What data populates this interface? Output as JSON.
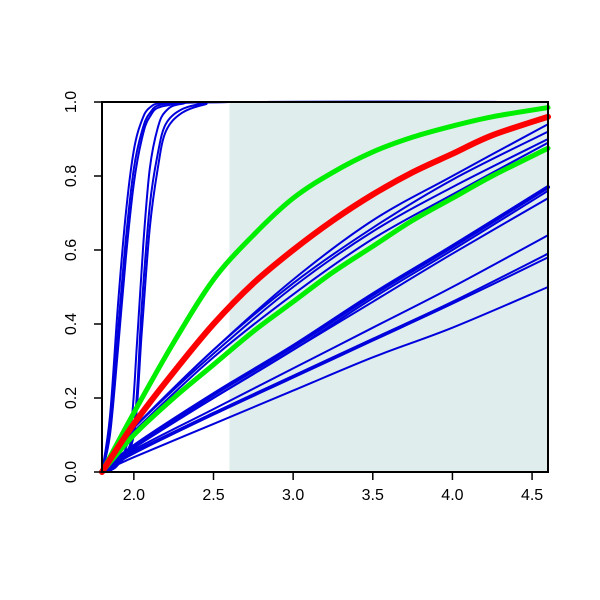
{
  "chart_data": {
    "type": "line",
    "title": "",
    "xlabel": "",
    "ylabel": "",
    "xlim": [
      1.8,
      4.6
    ],
    "ylim": [
      0,
      1
    ],
    "x_ticks": [
      "2.0",
      "2.5",
      "3.0",
      "3.5",
      "4.0",
      "4.5"
    ],
    "y_ticks": [
      "0.0",
      "0.2",
      "0.4",
      "0.6",
      "0.8",
      "1.0"
    ],
    "shaded_region": {
      "x_from": 2.6,
      "x_to": 4.6,
      "color": "#e0eded"
    },
    "colors": {
      "blue": "#0000dd",
      "red": "#ff0000",
      "green": "#00ee00",
      "axis": "#000000"
    },
    "series": [
      {
        "color": "blue",
        "width": 2,
        "values": [
          [
            1.8,
            0.0
          ],
          [
            1.85,
            0.15
          ],
          [
            1.9,
            0.45
          ],
          [
            1.95,
            0.7
          ],
          [
            2.0,
            0.87
          ],
          [
            2.05,
            0.95
          ],
          [
            2.1,
            0.985
          ],
          [
            2.2,
            0.998
          ],
          [
            2.6,
            1.0
          ],
          [
            4.6,
            1.0
          ]
        ]
      },
      {
        "color": "blue",
        "width": 2,
        "values": [
          [
            1.8,
            0.0
          ],
          [
            1.85,
            0.12
          ],
          [
            1.9,
            0.38
          ],
          [
            1.95,
            0.63
          ],
          [
            2.0,
            0.82
          ],
          [
            2.05,
            0.92
          ],
          [
            2.1,
            0.97
          ],
          [
            2.2,
            0.995
          ],
          [
            2.6,
            1.0
          ],
          [
            4.6,
            1.0
          ]
        ]
      },
      {
        "color": "blue",
        "width": 2,
        "values": [
          [
            1.8,
            0.0
          ],
          [
            1.85,
            0.1
          ],
          [
            1.9,
            0.33
          ],
          [
            1.95,
            0.58
          ],
          [
            2.0,
            0.78
          ],
          [
            2.05,
            0.9
          ],
          [
            2.1,
            0.96
          ],
          [
            2.2,
            0.99
          ],
          [
            2.6,
            1.0
          ],
          [
            4.6,
            1.0
          ]
        ]
      },
      {
        "color": "blue",
        "width": 2,
        "values": [
          [
            1.8,
            0.0
          ],
          [
            1.9,
            0.02
          ],
          [
            1.98,
            0.12
          ],
          [
            2.02,
            0.35
          ],
          [
            2.06,
            0.62
          ],
          [
            2.1,
            0.82
          ],
          [
            2.15,
            0.93
          ],
          [
            2.2,
            0.975
          ],
          [
            2.3,
            0.995
          ],
          [
            2.6,
            1.0
          ],
          [
            4.6,
            1.0
          ]
        ]
      },
      {
        "color": "blue",
        "width": 2,
        "values": [
          [
            1.8,
            0.0
          ],
          [
            1.9,
            0.02
          ],
          [
            2.0,
            0.12
          ],
          [
            2.05,
            0.45
          ],
          [
            2.1,
            0.72
          ],
          [
            2.15,
            0.86
          ],
          [
            2.2,
            0.94
          ],
          [
            2.3,
            0.98
          ],
          [
            2.45,
            0.997
          ],
          [
            2.6,
            1.0
          ],
          [
            4.6,
            1.0
          ]
        ]
      },
      {
        "color": "blue",
        "width": 2,
        "values": [
          [
            1.8,
            0.0
          ],
          [
            1.9,
            0.02
          ],
          [
            2.0,
            0.1
          ],
          [
            2.05,
            0.38
          ],
          [
            2.1,
            0.66
          ],
          [
            2.15,
            0.82
          ],
          [
            2.2,
            0.92
          ],
          [
            2.3,
            0.97
          ],
          [
            2.45,
            0.994
          ],
          [
            2.6,
            1.0
          ],
          [
            4.6,
            1.0
          ]
        ]
      },
      {
        "color": "blue",
        "width": 2,
        "values": [
          [
            1.8,
            0.0
          ],
          [
            1.9,
            0.07
          ],
          [
            2.0,
            0.12
          ],
          [
            2.5,
            0.33
          ],
          [
            3.0,
            0.52
          ],
          [
            3.5,
            0.68
          ],
          [
            4.0,
            0.8
          ],
          [
            4.6,
            0.94
          ]
        ]
      },
      {
        "color": "blue",
        "width": 2,
        "values": [
          [
            1.8,
            0.0
          ],
          [
            1.9,
            0.07
          ],
          [
            2.0,
            0.12
          ],
          [
            2.5,
            0.33
          ],
          [
            3.0,
            0.51
          ],
          [
            3.5,
            0.66
          ],
          [
            4.0,
            0.79
          ],
          [
            4.6,
            0.92
          ]
        ]
      },
      {
        "color": "blue",
        "width": 2,
        "values": [
          [
            1.8,
            0.0
          ],
          [
            1.9,
            0.07
          ],
          [
            2.0,
            0.12
          ],
          [
            2.5,
            0.32
          ],
          [
            3.0,
            0.5
          ],
          [
            3.5,
            0.65
          ],
          [
            4.0,
            0.77
          ],
          [
            4.6,
            0.9
          ]
        ]
      },
      {
        "color": "blue",
        "width": 2,
        "values": [
          [
            1.8,
            0.0
          ],
          [
            1.9,
            0.06
          ],
          [
            2.0,
            0.11
          ],
          [
            2.5,
            0.31
          ],
          [
            3.0,
            0.48
          ],
          [
            3.5,
            0.63
          ],
          [
            4.0,
            0.75
          ],
          [
            4.6,
            0.89
          ]
        ]
      },
      {
        "color": "blue",
        "width": 4,
        "values": [
          [
            1.8,
            0.0
          ],
          [
            2.0,
            0.07
          ],
          [
            2.5,
            0.21
          ],
          [
            3.0,
            0.34
          ],
          [
            3.5,
            0.48
          ],
          [
            4.0,
            0.61
          ],
          [
            4.6,
            0.77
          ]
        ]
      },
      {
        "color": "blue",
        "width": 2,
        "values": [
          [
            1.8,
            0.0
          ],
          [
            2.0,
            0.07
          ],
          [
            2.5,
            0.2
          ],
          [
            3.0,
            0.33
          ],
          [
            3.5,
            0.47
          ],
          [
            4.0,
            0.6
          ],
          [
            4.6,
            0.76
          ]
        ]
      },
      {
        "color": "blue",
        "width": 2,
        "values": [
          [
            1.8,
            0.0
          ],
          [
            2.0,
            0.065
          ],
          [
            2.5,
            0.2
          ],
          [
            3.0,
            0.33
          ],
          [
            3.5,
            0.46
          ],
          [
            4.0,
            0.59
          ],
          [
            4.6,
            0.74
          ]
        ]
      },
      {
        "color": "blue",
        "width": 2,
        "values": [
          [
            1.8,
            0.0
          ],
          [
            2.0,
            0.06
          ],
          [
            2.5,
            0.17
          ],
          [
            3.0,
            0.28
          ],
          [
            3.5,
            0.39
          ],
          [
            4.0,
            0.5
          ],
          [
            4.6,
            0.64
          ]
        ]
      },
      {
        "color": "blue",
        "width": 2,
        "values": [
          [
            1.8,
            0.0
          ],
          [
            2.0,
            0.055
          ],
          [
            2.5,
            0.16
          ],
          [
            3.0,
            0.26
          ],
          [
            3.5,
            0.36
          ],
          [
            4.0,
            0.46
          ],
          [
            4.6,
            0.59
          ]
        ]
      },
      {
        "color": "blue",
        "width": 2,
        "values": [
          [
            1.8,
            0.0
          ],
          [
            2.0,
            0.05
          ],
          [
            2.5,
            0.155
          ],
          [
            3.0,
            0.255
          ],
          [
            3.5,
            0.355
          ],
          [
            4.0,
            0.455
          ],
          [
            4.6,
            0.58
          ]
        ]
      },
      {
        "color": "blue",
        "width": 2,
        "values": [
          [
            1.8,
            0.0
          ],
          [
            2.0,
            0.04
          ],
          [
            2.5,
            0.13
          ],
          [
            3.0,
            0.22
          ],
          [
            3.5,
            0.31
          ],
          [
            4.0,
            0.39
          ],
          [
            4.6,
            0.5
          ]
        ]
      },
      {
        "color": "green",
        "width": 5,
        "values": [
          [
            1.8,
            0.0
          ],
          [
            2.0,
            0.16
          ],
          [
            2.25,
            0.35
          ],
          [
            2.5,
            0.52
          ],
          [
            2.75,
            0.64
          ],
          [
            3.0,
            0.74
          ],
          [
            3.25,
            0.81
          ],
          [
            3.5,
            0.865
          ],
          [
            3.75,
            0.905
          ],
          [
            4.0,
            0.935
          ],
          [
            4.25,
            0.96
          ],
          [
            4.6,
            0.985
          ]
        ]
      },
      {
        "color": "green",
        "width": 5,
        "values": [
          [
            1.8,
            0.0
          ],
          [
            2.0,
            0.1
          ],
          [
            2.25,
            0.2
          ],
          [
            2.5,
            0.29
          ],
          [
            2.75,
            0.38
          ],
          [
            3.0,
            0.46
          ],
          [
            3.25,
            0.54
          ],
          [
            3.5,
            0.61
          ],
          [
            3.75,
            0.68
          ],
          [
            4.0,
            0.74
          ],
          [
            4.25,
            0.8
          ],
          [
            4.6,
            0.875
          ]
        ]
      },
      {
        "color": "red",
        "width": 6,
        "values": [
          [
            1.8,
            0.0
          ],
          [
            2.0,
            0.13
          ],
          [
            2.25,
            0.27
          ],
          [
            2.5,
            0.4
          ],
          [
            2.75,
            0.51
          ],
          [
            3.0,
            0.6
          ],
          [
            3.25,
            0.68
          ],
          [
            3.5,
            0.75
          ],
          [
            3.75,
            0.81
          ],
          [
            4.0,
            0.86
          ],
          [
            4.25,
            0.91
          ],
          [
            4.6,
            0.96
          ]
        ]
      }
    ]
  }
}
